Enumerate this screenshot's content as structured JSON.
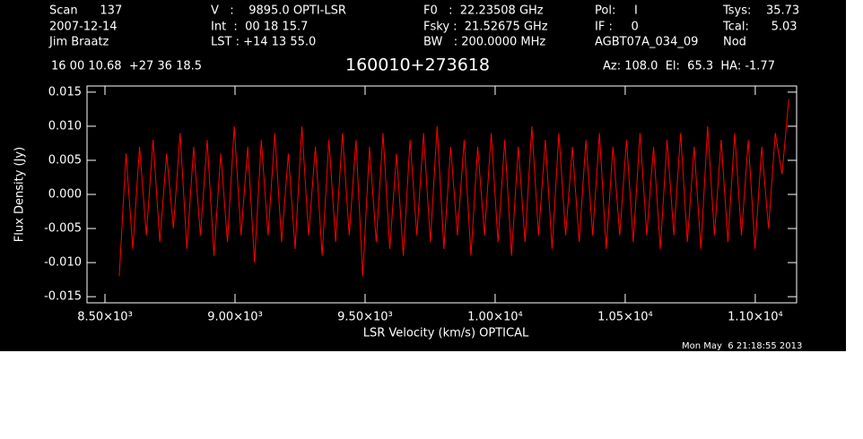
{
  "chart_data": {
    "type": "line",
    "title": "160010+273618",
    "header": [
      "Scan      137",
      "2007-12-14",
      "Jim Braatz",
      "V   :    9895.0 OPTI-LSR",
      "Int  :  00 18 15.7",
      "LST : +14 13 55.0",
      "F0   :  22.23508 GHz",
      "Fsky :  21.52675 GHz",
      "BW   : 200.0000 MHz",
      "Pol:     I",
      "IF :     0",
      "AGBT07A_034_09",
      "Tsys:    35.73",
      "Tcal:      5.03",
      "Nod",
      "16 00 10.68  +27 36 18.5",
      "Az: 108.0  El:  65.3  HA: -1.77"
    ],
    "footer": "Mon May  6 21:18:55 2013",
    "x_label": "LSR Velocity (km/s) OPTICAL",
    "y_label": "Flux Density (Jy)",
    "xlim": [
      8431,
      11159
    ],
    "ylim": [
      -0.0159,
      0.0159
    ],
    "xticks": [
      {
        "value": 8500,
        "label": "8.50×10³"
      },
      {
        "value": 9000,
        "label": "9.00×10³"
      },
      {
        "value": 9500,
        "label": "9.50×10³"
      },
      {
        "value": 10000,
        "label": "1.00×10⁴"
      },
      {
        "value": 10500,
        "label": "1.05×10⁴"
      },
      {
        "value": 11000,
        "label": "1.10×10⁴"
      }
    ],
    "yticks": [
      {
        "value": -0.015,
        "label": "-0.015"
      },
      {
        "value": -0.01,
        "label": "-0.010"
      },
      {
        "value": -0.005,
        "label": "-0.005"
      },
      {
        "value": 0,
        "label": "0.000"
      },
      {
        "value": 0.005,
        "label": "0.005"
      },
      {
        "value": 0.01,
        "label": "0.010"
      },
      {
        "value": 0.015,
        "label": "0.015"
      }
    ],
    "x": [
      8555,
      8581,
      8607,
      8633,
      8659,
      8685,
      8711,
      8737,
      8763,
      8789,
      8815,
      8841,
      8867,
      8893,
      8919,
      8945,
      8971,
      8997,
      9023,
      9049,
      9075,
      9101,
      9127,
      9153,
      9179,
      9205,
      9231,
      9257,
      9283,
      9309,
      9335,
      9361,
      9387,
      9413,
      9439,
      9465,
      9491,
      9517,
      9543,
      9569,
      9595,
      9621,
      9647,
      9673,
      9699,
      9725,
      9751,
      9777,
      9803,
      9829,
      9855,
      9881,
      9907,
      9933,
      9959,
      9985,
      10011,
      10037,
      10063,
      10089,
      10115,
      10141,
      10167,
      10193,
      10219,
      10245,
      10271,
      10297,
      10323,
      10349,
      10375,
      10401,
      10427,
      10453,
      10479,
      10505,
      10531,
      10557,
      10583,
      10609,
      10635,
      10661,
      10687,
      10713,
      10739,
      10765,
      10791,
      10817,
      10843,
      10869,
      10895,
      10921,
      10947,
      10973,
      10999,
      11025,
      11051,
      11077,
      11103,
      11129
    ],
    "series": [
      {
        "color": "#ff0000",
        "values": [
          -0.012,
          0.006,
          -0.008,
          0.007,
          -0.006,
          0.008,
          -0.007,
          0.006,
          -0.005,
          0.009,
          -0.008,
          0.007,
          -0.006,
          0.008,
          -0.009,
          0.006,
          -0.007,
          0.01,
          -0.006,
          0.007,
          -0.01,
          0.008,
          -0.006,
          0.009,
          -0.007,
          0.006,
          -0.008,
          0.01,
          -0.006,
          0.007,
          -0.009,
          0.008,
          -0.007,
          0.009,
          -0.006,
          0.008,
          -0.012,
          0.007,
          -0.007,
          0.009,
          -0.008,
          0.006,
          -0.009,
          0.008,
          -0.006,
          0.009,
          -0.007,
          0.01,
          -0.008,
          0.007,
          -0.006,
          0.008,
          -0.009,
          0.007,
          -0.006,
          0.009,
          -0.007,
          0.008,
          -0.009,
          0.007,
          -0.007,
          0.01,
          -0.006,
          0.008,
          -0.008,
          0.009,
          -0.006,
          0.007,
          -0.007,
          0.008,
          -0.006,
          0.009,
          -0.008,
          0.007,
          -0.006,
          0.008,
          -0.007,
          0.009,
          -0.006,
          0.007,
          -0.008,
          0.008,
          -0.006,
          0.009,
          -0.007,
          0.007,
          -0.008,
          0.01,
          -0.006,
          0.008,
          -0.007,
          0.009,
          -0.006,
          0.008,
          -0.008,
          0.007,
          -0.005,
          0.009,
          0.003,
          0.014
        ]
      }
    ]
  }
}
